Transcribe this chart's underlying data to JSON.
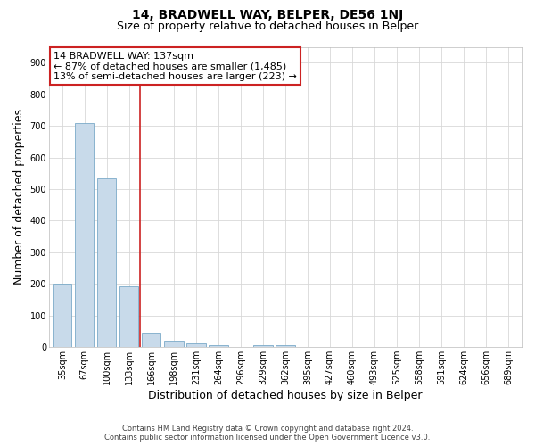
{
  "title": "14, BRADWELL WAY, BELPER, DE56 1NJ",
  "subtitle": "Size of property relative to detached houses in Belper",
  "xlabel": "Distribution of detached houses by size in Belper",
  "ylabel": "Number of detached properties",
  "bar_labels": [
    "35sqm",
    "67sqm",
    "100sqm",
    "133sqm",
    "166sqm",
    "198sqm",
    "231sqm",
    "264sqm",
    "296sqm",
    "329sqm",
    "362sqm",
    "395sqm",
    "427sqm",
    "460sqm",
    "493sqm",
    "525sqm",
    "558sqm",
    "591sqm",
    "624sqm",
    "656sqm",
    "689sqm"
  ],
  "bar_values": [
    200,
    710,
    535,
    193,
    45,
    20,
    12,
    5,
    0,
    7,
    5,
    0,
    0,
    0,
    0,
    0,
    0,
    0,
    0,
    0,
    0
  ],
  "bar_color": "#c8daea",
  "bar_edge_color": "#7aaac8",
  "annotation_line1": "14 BRADWELL WAY: 137sqm",
  "annotation_line2": "← 87% of detached houses are smaller (1,485)",
  "annotation_line3": "13% of semi-detached houses are larger (223) →",
  "annotation_box_color": "#ffffff",
  "annotation_box_edge_color": "#cc2222",
  "ylim": [
    0,
    950
  ],
  "yticks": [
    0,
    100,
    200,
    300,
    400,
    500,
    600,
    700,
    800,
    900
  ],
  "footer_line1": "Contains HM Land Registry data © Crown copyright and database right 2024.",
  "footer_line2": "Contains public sector information licensed under the Open Government Licence v3.0.",
  "background_color": "#ffffff",
  "grid_color": "#d8d8d8",
  "property_vline_x": 3.5,
  "title_fontsize": 10,
  "subtitle_fontsize": 9,
  "axis_label_fontsize": 9,
  "tick_fontsize": 7,
  "footer_fontsize": 6,
  "ann_fontsize": 8
}
